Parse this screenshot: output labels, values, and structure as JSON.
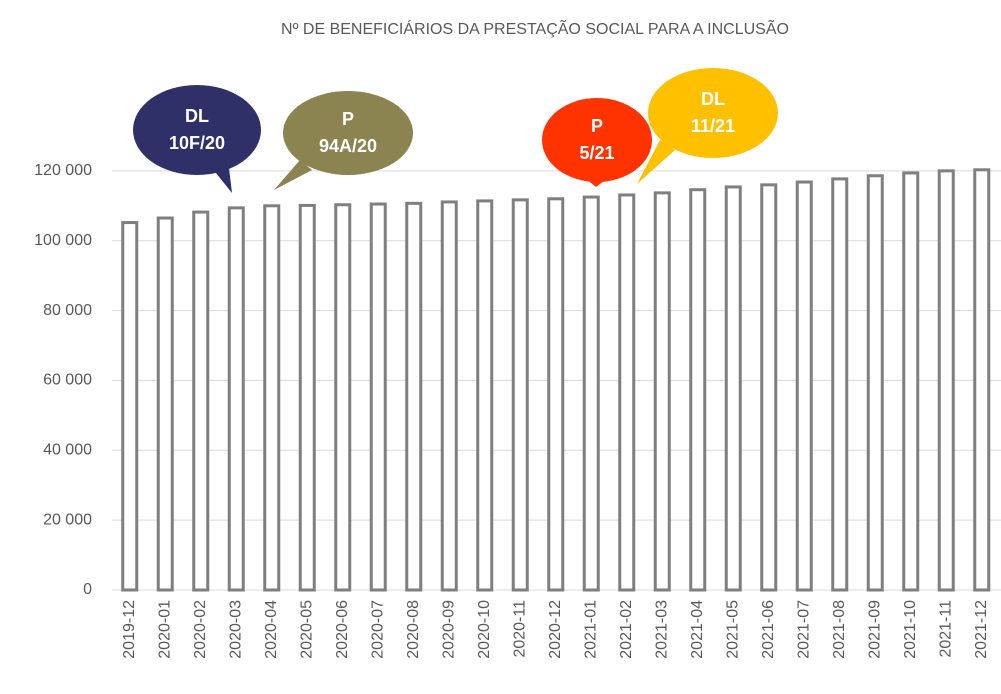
{
  "chart_data": {
    "type": "bar",
    "title": "Nº DE BENEFICIÁRIOS DA PRESTAÇÃO SOCIAL PARA A INCLUSÃO",
    "categories": [
      "2019-12",
      "2020-01",
      "2020-02",
      "2020-03",
      "2020-04",
      "2020-05",
      "2020-06",
      "2020-07",
      "2020-08",
      "2020-09",
      "2020-10",
      "2020-11",
      "2020-12",
      "2021-01",
      "2021-02",
      "2021-03",
      "2021-04",
      "2021-05",
      "2021-06",
      "2021-07",
      "2021-08",
      "2021-09",
      "2021-10",
      "2021-11",
      "2021-12"
    ],
    "values": [
      105200,
      106500,
      108200,
      109400,
      110000,
      110100,
      110300,
      110500,
      110700,
      111100,
      111400,
      111700,
      112000,
      112500,
      113100,
      113700,
      114600,
      115400,
      116000,
      116800,
      117700,
      118600,
      119400,
      120000,
      120300
    ],
    "color": "#ffffff",
    "edge_color": "#7f7f7f",
    "ylim": [
      0,
      140000
    ],
    "yticks": [
      {
        "value": 0,
        "label": "0"
      },
      {
        "value": 20000,
        "label": "20 000"
      },
      {
        "value": 40000,
        "label": "40 000"
      },
      {
        "value": 60000,
        "label": "60 000"
      },
      {
        "value": 80000,
        "label": "80 000"
      },
      {
        "value": 100000,
        "label": "100 000"
      },
      {
        "value": 120000,
        "label": "120 000"
      }
    ],
    "grid": true,
    "annotations": [
      {
        "lines": [
          "DL",
          "10F/20"
        ],
        "color": "#2e3067"
      },
      {
        "lines": [
          "P",
          "94A/20"
        ],
        "color": "#8b8350"
      },
      {
        "lines": [
          "P",
          "5/21"
        ],
        "color": "#ff3300"
      },
      {
        "lines": [
          "DL",
          "11/21"
        ],
        "color": "#ffc000"
      }
    ]
  }
}
